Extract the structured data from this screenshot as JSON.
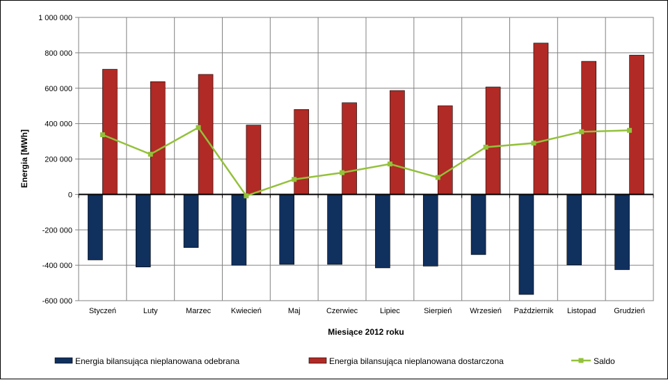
{
  "chart_data": {
    "type": "bar",
    "xlabel": "Miesiące 2012 roku",
    "ylabel": "Energia [MWh]",
    "ylim": [
      -600000,
      1000000
    ],
    "yticks": [
      -600000,
      -400000,
      -200000,
      0,
      200000,
      400000,
      600000,
      800000,
      1000000
    ],
    "ytick_labels": [
      "-600 000",
      "-400 000",
      "-200 000",
      "0",
      "200 000",
      "400 000",
      "600 000",
      "800 000",
      "1 000 000"
    ],
    "grid": true,
    "legend_position": "bottom",
    "categories": [
      "Styczeń",
      "Luty",
      "Marzec",
      "Kwiecień",
      "Maj",
      "Czerwiec",
      "Lipiec",
      "Sierpień",
      "Wrzesień",
      "Październik",
      "Listopad",
      "Grudzień"
    ],
    "series": [
      {
        "name": "Energia bilansująca nieplanowana odebrana",
        "type": "bar",
        "color": "#10305e",
        "values": [
          -370000,
          -410000,
          -300000,
          -400000,
          -395000,
          -395000,
          -415000,
          -405000,
          -340000,
          -565000,
          -398000,
          -425000
        ]
      },
      {
        "name": "Energia bilansująca nieplanowana dostarczona",
        "type": "bar",
        "color": "#b12a25",
        "values": [
          707000,
          637000,
          678000,
          392000,
          480000,
          518000,
          587000,
          501000,
          607000,
          855000,
          752000,
          787000
        ]
      },
      {
        "name": "Saldo",
        "type": "line",
        "color": "#93c13a",
        "values": [
          337000,
          227000,
          378000,
          -8000,
          85000,
          123000,
          172000,
          96000,
          267000,
          290000,
          354000,
          362000
        ]
      }
    ]
  }
}
